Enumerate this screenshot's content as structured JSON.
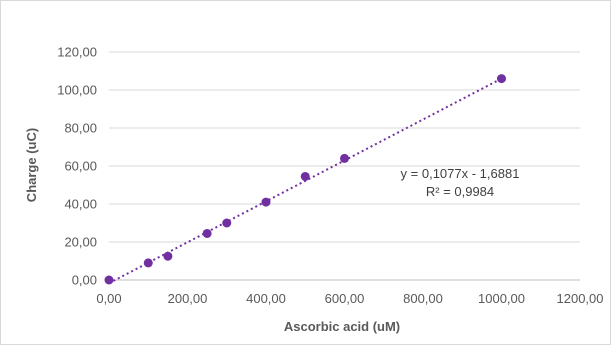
{
  "chart_data": {
    "type": "scatter",
    "title": "",
    "xlabel": "Ascorbic acid (uM)",
    "ylabel": "Charge (uC)",
    "xlim": [
      0,
      1200
    ],
    "ylim": [
      0,
      120
    ],
    "x_ticks": [
      "0,00",
      "200,00",
      "400,00",
      "600,00",
      "800,00",
      "1000,00",
      "1200,00"
    ],
    "y_ticks": [
      "0,00",
      "20,00",
      "40,00",
      "60,00",
      "80,00",
      "100,00",
      "120,00"
    ],
    "grid": "horizontal",
    "legend": "none",
    "series": [
      {
        "x": [
          0,
          100,
          150,
          250,
          300,
          400,
          500,
          600,
          1000
        ],
        "y": [
          0,
          9,
          12.5,
          24.5,
          30,
          41,
          54.5,
          64,
          106
        ],
        "color": "#7030a0",
        "marker": "circle"
      }
    ],
    "trendline": {
      "type": "linear",
      "slope": 0.1077,
      "intercept": -1.6881,
      "x_range": [
        0,
        1000
      ],
      "style": "dotted",
      "color": "#7030a0"
    },
    "annotations": {
      "equation": "y = 0,1077x - 1,6881",
      "r2": "R² = 0,9984"
    }
  }
}
